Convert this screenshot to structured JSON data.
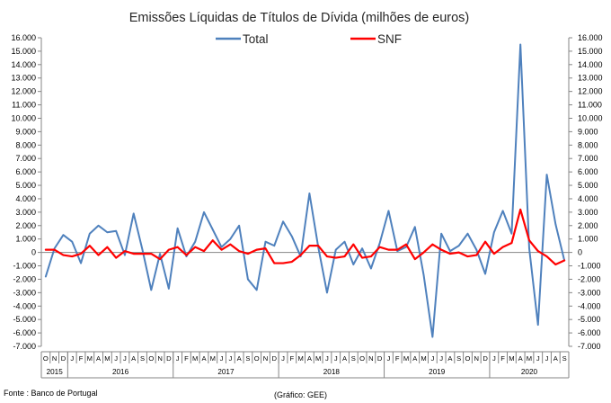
{
  "chart_data": {
    "type": "line",
    "title": "Emissões Líquidas de Títulos de Dívida (milhões de euros)",
    "xlabel": "",
    "ylabel": "",
    "ylim": [
      -7000,
      16000
    ],
    "y_ticks": [
      "16.000",
      "15.000",
      "14.000",
      "13.000",
      "12.000",
      "11.000",
      "10.000",
      "9.000",
      "8.000",
      "7.000",
      "6.000",
      "5.000",
      "4.000",
      "3.000",
      "2.000",
      "1.000",
      "0",
      "-1.000",
      "-2.000",
      "-3.000",
      "-4.000",
      "-5.000",
      "-6.000",
      "-7.000"
    ],
    "y_tick_values": [
      16000,
      15000,
      14000,
      13000,
      12000,
      11000,
      10000,
      9000,
      8000,
      7000,
      6000,
      5000,
      4000,
      3000,
      2000,
      1000,
      0,
      -1000,
      -2000,
      -3000,
      -4000,
      -5000,
      -6000,
      -7000
    ],
    "legend_position": "top",
    "grid": false,
    "months": [
      "O",
      "N",
      "D",
      "J",
      "F",
      "M",
      "A",
      "M",
      "J",
      "J",
      "A",
      "S",
      "O",
      "N",
      "D",
      "J",
      "F",
      "M",
      "A",
      "M",
      "J",
      "J",
      "A",
      "S",
      "O",
      "N",
      "D",
      "J",
      "F",
      "M",
      "A",
      "M",
      "J",
      "J",
      "A",
      "S",
      "O",
      "N",
      "D",
      "J",
      "F",
      "M",
      "A",
      "M",
      "J",
      "J",
      "A",
      "S",
      "O",
      "N",
      "D",
      "J",
      "F",
      "M",
      "A",
      "M",
      "J",
      "J",
      "A",
      "S"
    ],
    "years": [
      {
        "label": "2015",
        "start": 0,
        "end": 2
      },
      {
        "label": "2016",
        "start": 3,
        "end": 14
      },
      {
        "label": "2017",
        "start": 15,
        "end": 26
      },
      {
        "label": "2018",
        "start": 27,
        "end": 38
      },
      {
        "label": "2019",
        "start": 39,
        "end": 50
      },
      {
        "label": "2020",
        "start": 51,
        "end": 59
      }
    ],
    "series": [
      {
        "name": "Total",
        "color": "#4F81BD",
        "values": [
          -1800,
          300,
          1300,
          800,
          -800,
          1400,
          2000,
          1500,
          1600,
          -200,
          2900,
          200,
          -2800,
          -100,
          -2700,
          1800,
          -300,
          800,
          3000,
          1700,
          400,
          1000,
          2000,
          -2000,
          -2800,
          800,
          500,
          2300,
          1200,
          -300,
          4400,
          400,
          -3000,
          200,
          800,
          -900,
          300,
          -1200,
          700,
          3100,
          100,
          400,
          1900,
          -1700,
          -6300,
          1400,
          100,
          500,
          1400,
          200,
          -1600,
          1500,
          3100,
          1400,
          15500,
          300,
          -5400,
          5800,
          2100,
          -600
        ]
      },
      {
        "name": "SNF",
        "color": "#FF0000",
        "values": [
          200,
          200,
          -200,
          -300,
          -100,
          500,
          -200,
          400,
          -400,
          100,
          -100,
          -100,
          -100,
          -500,
          200,
          400,
          -200,
          400,
          100,
          900,
          200,
          600,
          100,
          -100,
          200,
          300,
          -800,
          -800,
          -700,
          -200,
          500,
          500,
          -300,
          -400,
          -300,
          600,
          -400,
          -300,
          400,
          200,
          200,
          600,
          -500,
          0,
          600,
          200,
          -100,
          0,
          -300,
          -200,
          800,
          -100,
          400,
          700,
          3200,
          900,
          100,
          -300,
          -900,
          -600
        ]
      }
    ]
  },
  "footer": {
    "source": "Fonte : Banco de Portugal",
    "credit": "(Gráfico: GEE)"
  }
}
